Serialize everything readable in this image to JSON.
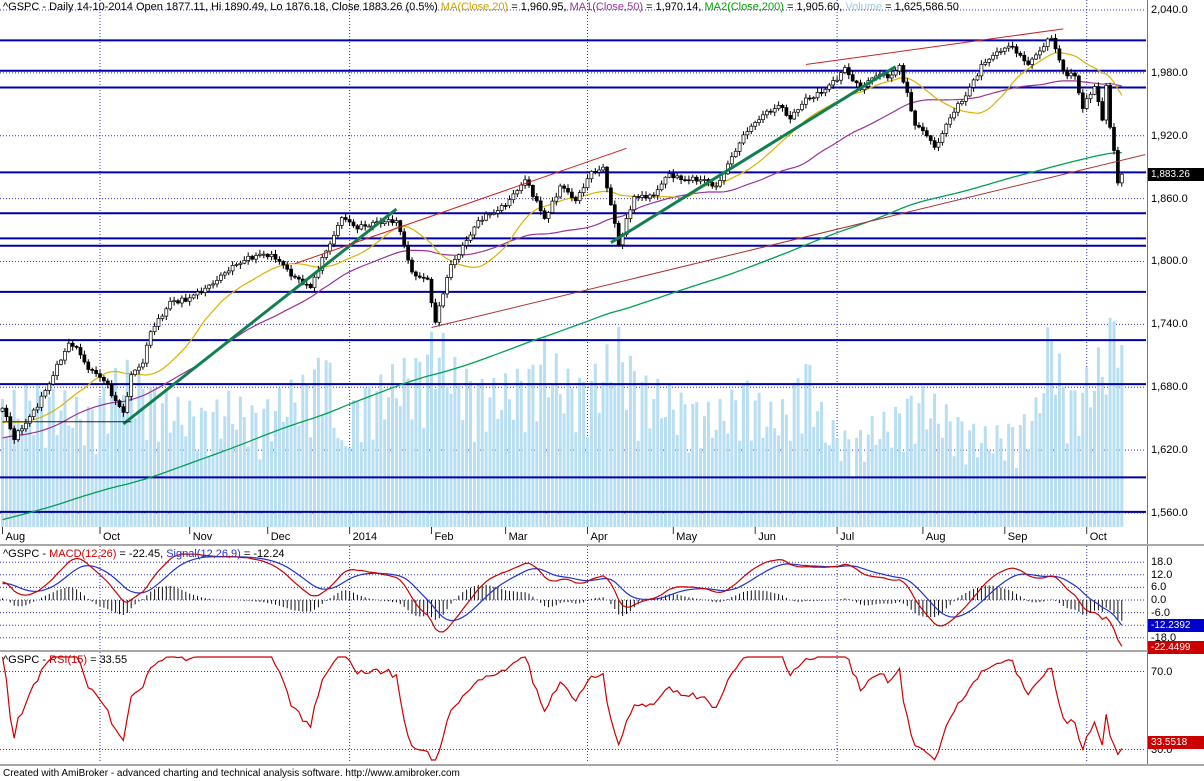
{
  "app": {
    "footer": "Created with AmiBroker - advanced charting and technical analysis software. http://www.amibroker.com"
  },
  "panels": {
    "price": {
      "title_segments": [
        {
          "text": "^GSPC - Daily 14-10-2014 Open 1877.11, Hi 1890.49, Lo 1876.18, Close 1883.26 (0.5%)  ",
          "color": "#000000"
        },
        {
          "text": "MA(Close,20)",
          "color": "#c9a100"
        },
        {
          "text": " = 1,960.95,  ",
          "color": "#000000"
        },
        {
          "text": "MA1(Close,50)",
          "color": "#993399"
        },
        {
          "text": " = 1,970.14,  ",
          "color": "#000000"
        },
        {
          "text": "MA2(Close,200)",
          "color": "#00a000"
        },
        {
          "text": " = 1,905.60,  ",
          "color": "#000000"
        },
        {
          "text": "Volume",
          "color": "#9cc9e8"
        },
        {
          "text": " = 1,625,586.50",
          "color": "#000000"
        }
      ],
      "y_axis": [
        {
          "value": 2040,
          "label": "2,040.0"
        },
        {
          "value": 1980,
          "label": "1,980.0"
        },
        {
          "value": 1920,
          "label": "1,920.0"
        },
        {
          "value": 1860,
          "label": "1,860.0"
        },
        {
          "value": 1800,
          "label": "1,800.0"
        },
        {
          "value": 1740,
          "label": "1,740.0"
        },
        {
          "value": 1680,
          "label": "1,680.0"
        },
        {
          "value": 1620,
          "label": "1,620.0"
        },
        {
          "value": 1560,
          "label": "1,560.0"
        }
      ],
      "last_price_badge": "1,883.26"
    },
    "macd": {
      "title_segments": [
        {
          "text": "^GSPC - ",
          "color": "#000000"
        },
        {
          "text": "MACD(12,26)",
          "color": "#cc0000"
        },
        {
          "text": " = -22.45, ",
          "color": "#000000"
        },
        {
          "text": "Signal(12,26,9)",
          "color": "#2233cc"
        },
        {
          "text": " = -12.24",
          "color": "#000000"
        }
      ],
      "y_axis": [
        {
          "value": 18,
          "label": "18.0"
        },
        {
          "value": 12,
          "label": "12.0"
        },
        {
          "value": 6,
          "label": "6.0"
        },
        {
          "value": 0,
          "label": "0.0"
        },
        {
          "value": -6,
          "label": "-6.0"
        },
        {
          "value": -18,
          "label": "-18.0"
        }
      ],
      "signal_badge": "-12.2392",
      "macd_badge": "-22.4499"
    },
    "rsi": {
      "title_segments": [
        {
          "text": "^GSPC - ",
          "color": "#000000"
        },
        {
          "text": "RSI(15)",
          "color": "#cc0000"
        },
        {
          "text": " = 33.55",
          "color": "#000000"
        }
      ],
      "y_axis": [
        {
          "value": 70,
          "label": "70.0"
        },
        {
          "value": 30,
          "label": "30.0"
        }
      ],
      "rsi_badge": "33.5518"
    }
  },
  "chart_data": [
    {
      "type": "candlestick",
      "symbol": "^GSPC",
      "timeframe": "Daily",
      "title": "^GSPC - Daily 14-10-2014 Open 1877.11, Hi 1890.49, Lo 1876.18, Close 1883.26 (0.5%)",
      "last_bar": {
        "date": "14-10-2014",
        "open": 1877.11,
        "high": 1890.49,
        "low": 1876.18,
        "close": 1883.26,
        "change_pct": 0.5
      },
      "ylim": [
        1556,
        2045
      ],
      "y_ticks": [
        2040,
        1980,
        1920,
        1860,
        1800,
        1740,
        1680,
        1620,
        1560
      ],
      "months": [
        {
          "label": "Aug",
          "day": 0
        },
        {
          "label": "Oct",
          "day": 25
        },
        {
          "label": "Nov",
          "day": 48
        },
        {
          "label": "Dec",
          "day": 68
        },
        {
          "label": "2014",
          "day": 89
        },
        {
          "label": "Feb",
          "day": 110
        },
        {
          "label": "Mar",
          "day": 129
        },
        {
          "label": "Apr",
          "day": 150
        },
        {
          "label": "May",
          "day": 172
        },
        {
          "label": "Jun",
          "day": 193
        },
        {
          "label": "Jul",
          "day": 214
        },
        {
          "label": "Aug",
          "day": 236
        },
        {
          "label": "Sep",
          "day": 257
        },
        {
          "label": "Oct",
          "day": 278
        }
      ],
      "quarter_gridline_days": [
        25,
        89,
        150,
        214,
        278
      ],
      "days": 288,
      "close_anchors": [
        [
          0,
          1660
        ],
        [
          3,
          1630
        ],
        [
          7,
          1652
        ],
        [
          12,
          1683
        ],
        [
          17,
          1722
        ],
        [
          19,
          1718
        ],
        [
          22,
          1697
        ],
        [
          26,
          1686
        ],
        [
          31,
          1656
        ],
        [
          33,
          1692
        ],
        [
          36,
          1703
        ],
        [
          38,
          1733
        ],
        [
          43,
          1762
        ],
        [
          47,
          1762
        ],
        [
          50,
          1771
        ],
        [
          55,
          1782
        ],
        [
          58,
          1791
        ],
        [
          63,
          1805
        ],
        [
          67,
          1807
        ],
        [
          71,
          1800
        ],
        [
          75,
          1785
        ],
        [
          79,
          1775
        ],
        [
          83,
          1810
        ],
        [
          87,
          1842
        ],
        [
          91,
          1831
        ],
        [
          96,
          1838
        ],
        [
          101,
          1839
        ],
        [
          105,
          1790
        ],
        [
          109,
          1783
        ],
        [
          111,
          1742
        ],
        [
          115,
          1797
        ],
        [
          119,
          1820
        ],
        [
          122,
          1839
        ],
        [
          126,
          1846
        ],
        [
          130,
          1859
        ],
        [
          134,
          1878
        ],
        [
          139,
          1841
        ],
        [
          143,
          1872
        ],
        [
          147,
          1858
        ],
        [
          151,
          1886
        ],
        [
          154,
          1890
        ],
        [
          158,
          1816
        ],
        [
          162,
          1862
        ],
        [
          167,
          1863
        ],
        [
          171,
          1884
        ],
        [
          175,
          1878
        ],
        [
          179,
          1878
        ],
        [
          183,
          1872
        ],
        [
          187,
          1900
        ],
        [
          191,
          1924
        ],
        [
          195,
          1940
        ],
        [
          199,
          1949
        ],
        [
          202,
          1936
        ],
        [
          206,
          1956
        ],
        [
          210,
          1961
        ],
        [
          214,
          1973
        ],
        [
          216,
          1985
        ],
        [
          220,
          1964
        ],
        [
          224,
          1977
        ],
        [
          228,
          1978
        ],
        [
          230,
          1987
        ],
        [
          234,
          1930
        ],
        [
          237,
          1920
        ],
        [
          239,
          1909
        ],
        [
          243,
          1937
        ],
        [
          247,
          1958
        ],
        [
          251,
          1988
        ],
        [
          255,
          2000
        ],
        [
          259,
          2005
        ],
        [
          263,
          1988
        ],
        [
          267,
          2005
        ],
        [
          269,
          2013
        ],
        [
          272,
          1982
        ],
        [
          275,
          1977
        ],
        [
          277,
          1946
        ],
        [
          280,
          1967
        ],
        [
          282,
          1935
        ],
        [
          283,
          1968
        ],
        [
          284,
          1928
        ],
        [
          285,
          1906
        ],
        [
          286,
          1875
        ],
        [
          287,
          1883.26
        ]
      ],
      "overlays": [
        {
          "name": "MA(Close,20)",
          "value": 1960.95,
          "color": "#d9b300"
        },
        {
          "name": "MA1(Close,50)",
          "value": 1970.14,
          "color": "#993399"
        },
        {
          "name": "MA2(Close,200)",
          "value": 1905.6,
          "color": "#00a050"
        }
      ],
      "volume": {
        "name": "Volume",
        "last_value": 1625586.5,
        "color": "#b8def2",
        "anchors": [
          [
            0,
            0.42
          ],
          [
            8,
            0.48
          ],
          [
            15,
            0.45
          ],
          [
            22,
            0.4
          ],
          [
            31,
            0.55
          ],
          [
            38,
            0.48
          ],
          [
            45,
            0.42
          ],
          [
            52,
            0.4
          ],
          [
            58,
            0.44
          ],
          [
            65,
            0.4
          ],
          [
            71,
            0.45
          ],
          [
            79,
            0.52
          ],
          [
            83,
            0.62
          ],
          [
            87,
            0.28
          ],
          [
            91,
            0.46
          ],
          [
            97,
            0.5
          ],
          [
            103,
            0.55
          ],
          [
            108,
            0.58
          ],
          [
            111,
            0.68
          ],
          [
            116,
            0.55
          ],
          [
            122,
            0.5
          ],
          [
            127,
            0.48
          ],
          [
            132,
            0.52
          ],
          [
            136,
            0.55
          ],
          [
            139,
            0.62
          ],
          [
            144,
            0.52
          ],
          [
            149,
            0.5
          ],
          [
            153,
            0.55
          ],
          [
            158,
            0.65
          ],
          [
            163,
            0.52
          ],
          [
            168,
            0.48
          ],
          [
            173,
            0.45
          ],
          [
            178,
            0.42
          ],
          [
            183,
            0.4
          ],
          [
            187,
            0.45
          ],
          [
            191,
            0.5
          ],
          [
            196,
            0.4
          ],
          [
            201,
            0.42
          ],
          [
            206,
            0.58
          ],
          [
            211,
            0.36
          ],
          [
            214,
            0.34
          ],
          [
            218,
            0.3
          ],
          [
            223,
            0.36
          ],
          [
            228,
            0.38
          ],
          [
            232,
            0.44
          ],
          [
            236,
            0.46
          ],
          [
            240,
            0.42
          ],
          [
            244,
            0.38
          ],
          [
            249,
            0.34
          ],
          [
            253,
            0.32
          ],
          [
            257,
            0.34
          ],
          [
            261,
            0.36
          ],
          [
            265,
            0.42
          ],
          [
            269,
            0.72
          ],
          [
            272,
            0.5
          ],
          [
            275,
            0.46
          ],
          [
            278,
            0.52
          ],
          [
            281,
            0.58
          ],
          [
            283,
            0.62
          ],
          [
            285,
            0.75
          ],
          [
            286,
            0.88
          ],
          [
            287,
            0.62
          ]
        ]
      },
      "support_resistance_levels": [
        2011,
        1982,
        1966,
        1885,
        1846,
        1822,
        1815,
        1771,
        1725,
        1683,
        1594,
        1561
      ],
      "sr_color": "#0000a8",
      "trendlines": [
        {
          "from": [
            31,
            1645
          ],
          "to": [
            101,
            1850
          ],
          "color": "#108050",
          "width": 3
        },
        {
          "from": [
            156,
            1818
          ],
          "to": [
            229,
            1986
          ],
          "color": "#108050",
          "width": 3
        },
        {
          "from": [
            75,
            1798
          ],
          "to": [
            160,
            1908
          ],
          "color": "#cc2222",
          "width": 1
        },
        {
          "from": [
            206,
            1988
          ],
          "to": [
            272,
            2022
          ],
          "color": "#cc2222",
          "width": 1
        },
        {
          "from": [
            110,
            1737
          ],
          "to": [
            293,
            1902
          ],
          "color": "#aa3333",
          "width": 1
        },
        {
          "from": [
            0,
            1647
          ],
          "to": [
            33,
            1647
          ],
          "color": "#222222",
          "width": 1
        }
      ]
    },
    {
      "type": "line",
      "name": "MACD",
      "fast": 12,
      "slow": 26,
      "signal_period": 9,
      "macd_value": -22.45,
      "signal_value": -12.24,
      "y_ticks": [
        18,
        12,
        6,
        0,
        -6,
        -12,
        -18
      ],
      "macd_color": "#cc0000",
      "signal_color": "#2233cc",
      "histogram_color": "#111111",
      "derived_from": "chart_data[0].close_anchors"
    },
    {
      "type": "line",
      "name": "RSI",
      "period": 15,
      "value": 33.55,
      "y_ticks": [
        70,
        30
      ],
      "color": "#cc0000",
      "derived_from": "chart_data[0].close_anchors"
    }
  ]
}
